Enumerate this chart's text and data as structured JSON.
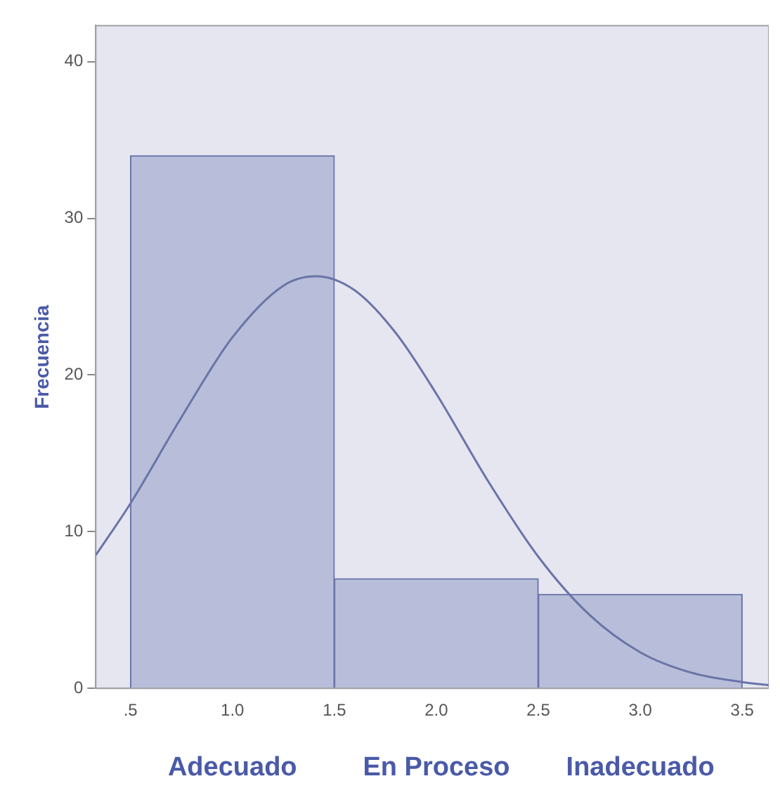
{
  "chart_data": {
    "type": "histogram",
    "ylabel": "Frecuencia",
    "bins": [
      0.5,
      1.5,
      2.5,
      3.5
    ],
    "values": [
      34,
      7,
      6
    ],
    "color": "#b8bed9",
    "series": [
      {
        "type": "line",
        "color": "#6a74a8",
        "x": [
          0.33,
          0.5,
          0.75,
          1.0,
          1.25,
          1.41,
          1.6,
          1.8,
          2.0,
          2.25,
          2.5,
          2.75,
          3.0,
          3.25,
          3.5,
          3.63
        ],
        "values": [
          8.5,
          11.8,
          17.3,
          22.4,
          25.7,
          26.3,
          25.4,
          22.7,
          18.8,
          13.3,
          8.4,
          4.7,
          2.3,
          1.0,
          0.4,
          0.2
        ]
      }
    ],
    "xlim": [
      0.33,
      3.63
    ],
    "ylim": [
      0,
      42.3
    ],
    "xticks": [
      {
        "value": 0.5,
        "label": ".5"
      },
      {
        "value": 1,
        "label": "1.0"
      },
      {
        "value": 1.5,
        "label": "1.5"
      },
      {
        "value": 2,
        "label": "2.0"
      },
      {
        "value": 2.5,
        "label": "2.5"
      },
      {
        "value": 3,
        "label": "3.0"
      },
      {
        "value": 3.5,
        "label": "3.5"
      }
    ],
    "yticks": [
      0,
      10,
      20,
      30,
      40
    ],
    "annotations": [
      "Adecuado",
      "En Proceso",
      "Inadecuado"
    ],
    "grid": false,
    "legend": false,
    "marker": "none",
    "line_style": "solid"
  }
}
